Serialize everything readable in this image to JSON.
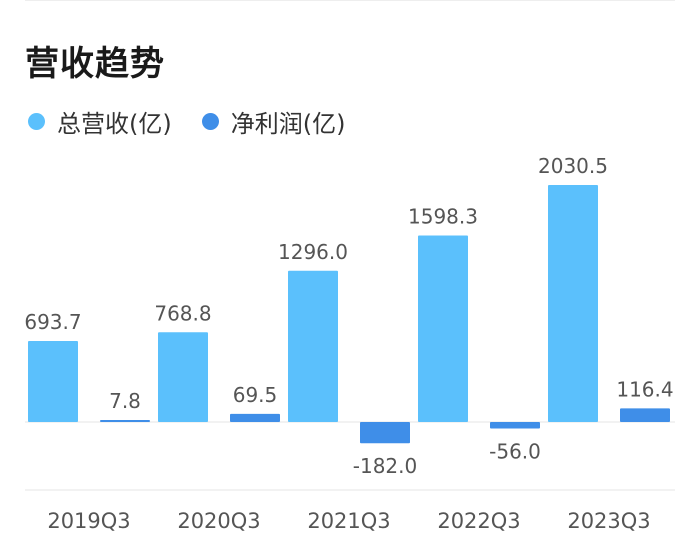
{
  "header": {
    "title": "营收趋势"
  },
  "chart_data": {
    "type": "bar",
    "categories": [
      "2019Q3",
      "2020Q3",
      "2021Q3",
      "2022Q3",
      "2023Q3"
    ],
    "series": [
      {
        "name": "总营收(亿)",
        "color": "#5bc0fc",
        "values": [
          693.7,
          768.8,
          1296.0,
          1598.3,
          2030.5
        ],
        "labels": [
          "693.7",
          "768.8",
          "1296.0",
          "1598.3",
          "2030.5"
        ]
      },
      {
        "name": "净利润(亿)",
        "color": "#3f8ee8",
        "values": [
          7.8,
          69.5,
          -182.0,
          -56.0,
          116.4
        ],
        "labels": [
          "7.8",
          "69.5",
          "-182.0",
          "-56.0",
          "116.4"
        ]
      }
    ],
    "ylim": [
      -240,
      2200
    ],
    "grid": false,
    "legend": "top-left"
  }
}
